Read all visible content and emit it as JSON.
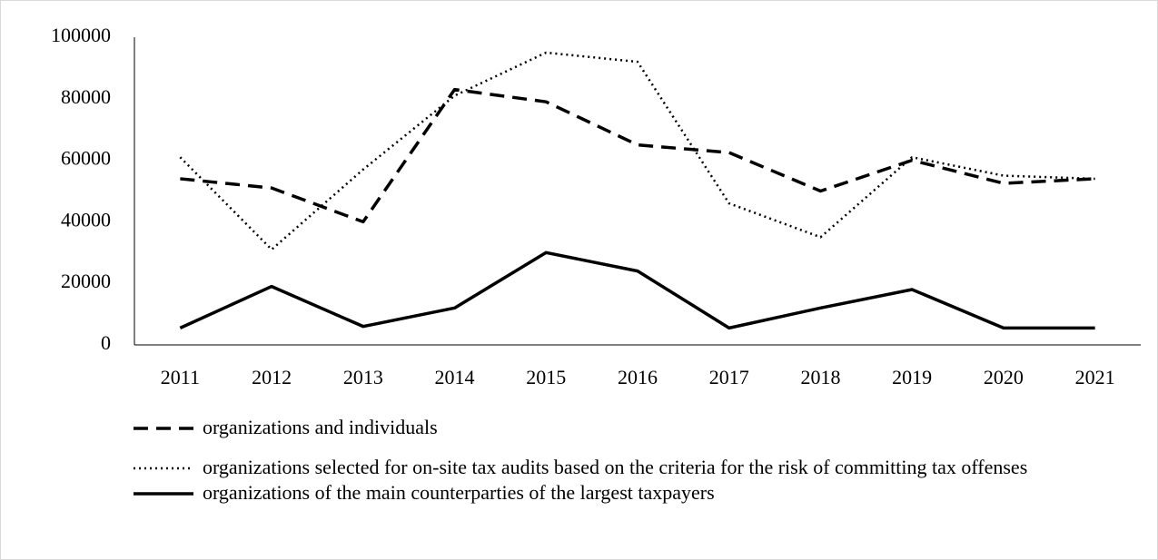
{
  "chart_data": {
    "type": "line",
    "categories": [
      "2011",
      "2012",
      "2013",
      "2014",
      "2015",
      "2016",
      "2017",
      "2018",
      "2019",
      "2020",
      "2021"
    ],
    "series": [
      {
        "name": "organizations and individuals",
        "color": "#000000",
        "dash": "dashed",
        "values": [
          54000,
          51000,
          40000,
          83000,
          79000,
          65000,
          62500,
          50000,
          60000,
          52500,
          54000
        ]
      },
      {
        "name": "organizations selected for on-site tax audits based on the criteria for the risk of committing tax offenses",
        "color": "#000000",
        "dash": "dotted",
        "values": [
          61000,
          31000,
          57000,
          81000,
          95000,
          92000,
          46000,
          35000,
          61000,
          55000,
          54000
        ]
      },
      {
        "name": "organizations of the main counterparties of the largest taxpayers",
        "color": "#000000",
        "dash": "solid",
        "values": [
          5500,
          19000,
          6000,
          12000,
          30000,
          24000,
          5500,
          12000,
          18000,
          5500,
          5500
        ]
      }
    ],
    "ylim": [
      0,
      100000
    ],
    "yticks": [
      0,
      20000,
      40000,
      60000,
      80000,
      100000
    ],
    "grid": false
  }
}
